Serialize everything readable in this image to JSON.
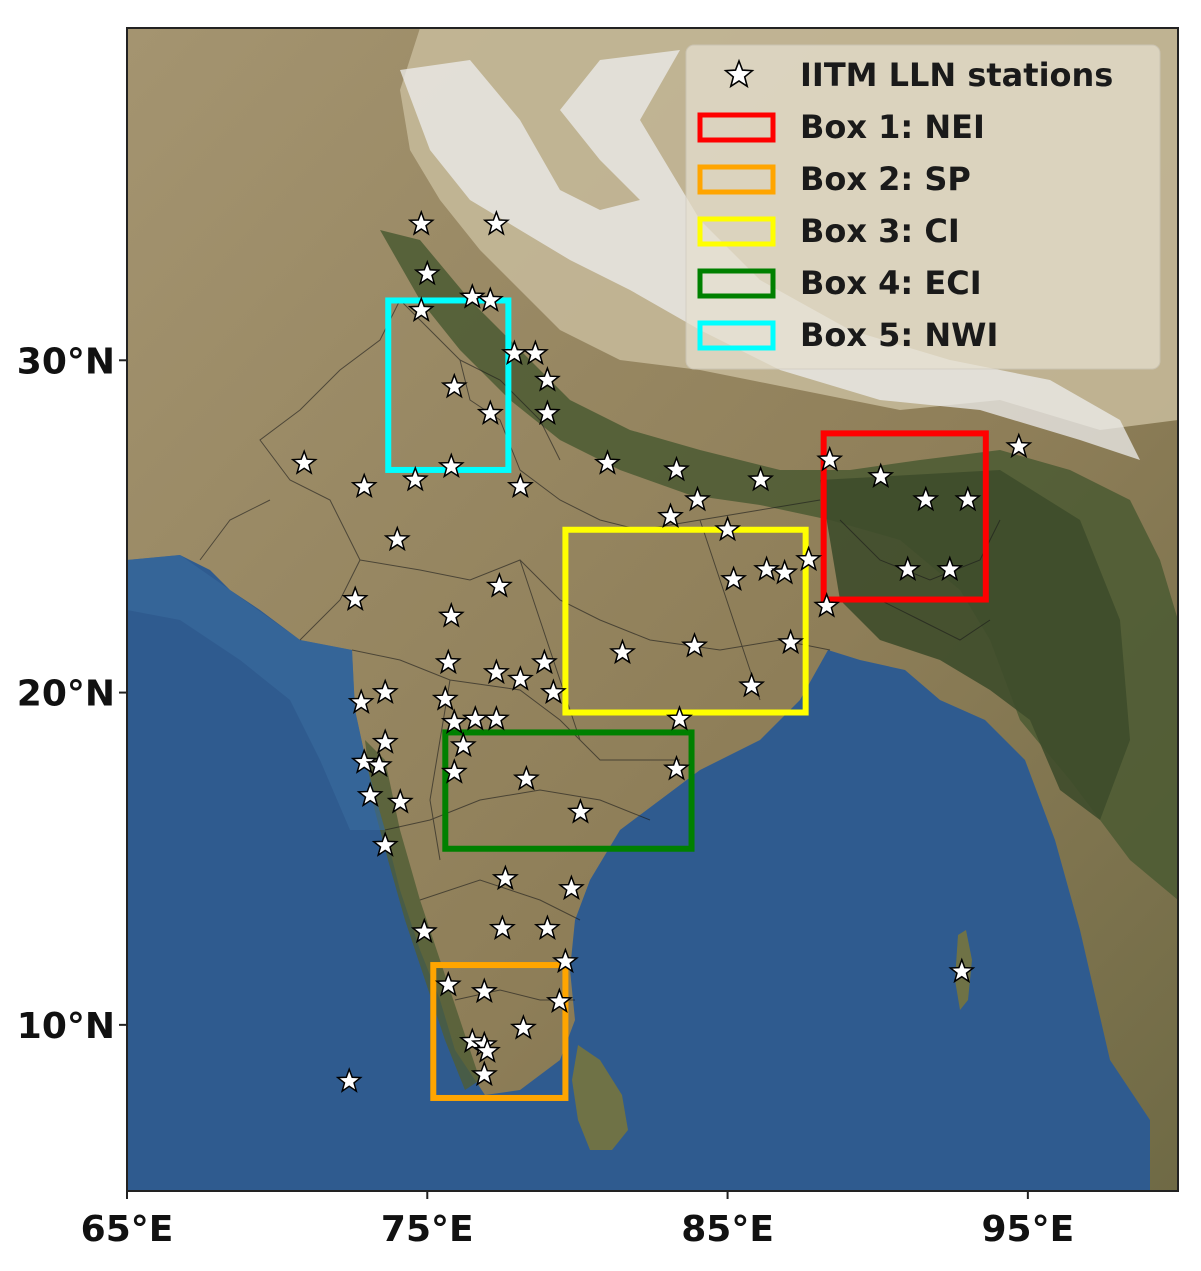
{
  "map": {
    "lon_range": [
      65,
      100
    ],
    "lat_range": [
      5,
      40
    ],
    "x_ticks": [
      {
        "lon": 65,
        "label": "65°E"
      },
      {
        "lon": 75,
        "label": "75°E"
      },
      {
        "lon": 85,
        "label": "85°E"
      },
      {
        "lon": 95,
        "label": "95°E"
      }
    ],
    "y_ticks": [
      {
        "lat": 10,
        "label": "10°N"
      },
      {
        "lat": 20,
        "label": "20°N"
      },
      {
        "lat": 30,
        "label": "30°N"
      }
    ],
    "colors": {
      "ocean": "#2f5b8f",
      "land": "#9a8a63",
      "highland": "#b9ac8c",
      "snow": "#e8e8e8",
      "vegetation": "#4a5a33"
    }
  },
  "legend": {
    "position": "top-right",
    "items": [
      {
        "id": "stations",
        "label": "IITM LLN stations",
        "marker": "star",
        "color": "#ffffff"
      },
      {
        "id": "box1",
        "label": "Box 1: NEI",
        "marker": "rect",
        "color": "#ff0000"
      },
      {
        "id": "box2",
        "label": "Box 2: SP",
        "marker": "rect",
        "color": "#ffa500"
      },
      {
        "id": "box3",
        "label": "Box 3: CI",
        "marker": "rect",
        "color": "#ffff00"
      },
      {
        "id": "box4",
        "label": "Box 4: ECI",
        "marker": "rect",
        "color": "#008000"
      },
      {
        "id": "box5",
        "label": "Box 5: NWI",
        "marker": "rect",
        "color": "#00ffff"
      }
    ]
  },
  "boxes": [
    {
      "id": "box1",
      "name": "NEI",
      "color": "#ff0000",
      "lon": [
        88.2,
        93.6
      ],
      "lat": [
        22.8,
        27.8
      ]
    },
    {
      "id": "box2",
      "name": "SP",
      "color": "#ffa500",
      "lon": [
        75.2,
        79.6
      ],
      "lat": [
        7.8,
        11.8
      ]
    },
    {
      "id": "box3",
      "name": "CI",
      "color": "#ffff00",
      "lon": [
        79.6,
        87.6
      ],
      "lat": [
        19.4,
        24.9
      ]
    },
    {
      "id": "box4",
      "name": "ECI",
      "color": "#008000",
      "lon": [
        75.6,
        83.8
      ],
      "lat": [
        15.3,
        18.8
      ]
    },
    {
      "id": "box5",
      "name": "NWI",
      "color": "#00ffff",
      "lon": [
        73.7,
        77.7
      ],
      "lat": [
        26.7,
        31.8
      ]
    }
  ],
  "stations": [
    [
      74.8,
      34.1
    ],
    [
      77.3,
      34.1
    ],
    [
      75.0,
      32.6
    ],
    [
      76.5,
      31.9
    ],
    [
      77.1,
      31.8
    ],
    [
      74.8,
      31.5
    ],
    [
      77.9,
      30.2
    ],
    [
      78.6,
      30.2
    ],
    [
      79.0,
      29.4
    ],
    [
      75.9,
      29.2
    ],
    [
      77.1,
      28.4
    ],
    [
      79.0,
      28.4
    ],
    [
      70.9,
      26.9
    ],
    [
      72.9,
      26.2
    ],
    [
      74.6,
      26.4
    ],
    [
      75.8,
      26.8
    ],
    [
      78.1,
      26.2
    ],
    [
      81.0,
      26.9
    ],
    [
      83.3,
      26.7
    ],
    [
      84.0,
      25.8
    ],
    [
      86.1,
      26.4
    ],
    [
      88.4,
      27.0
    ],
    [
      90.1,
      26.5
    ],
    [
      91.6,
      25.8
    ],
    [
      93.0,
      25.8
    ],
    [
      94.7,
      27.4
    ],
    [
      83.1,
      25.3
    ],
    [
      85.0,
      24.9
    ],
    [
      85.2,
      23.4
    ],
    [
      86.3,
      23.7
    ],
    [
      86.9,
      23.6
    ],
    [
      87.7,
      24.0
    ],
    [
      91.0,
      23.7
    ],
    [
      92.4,
      23.7
    ],
    [
      88.3,
      22.6
    ],
    [
      74.0,
      24.6
    ],
    [
      72.6,
      22.8
    ],
    [
      75.8,
      22.3
    ],
    [
      77.4,
      23.2
    ],
    [
      81.5,
      21.2
    ],
    [
      83.9,
      21.4
    ],
    [
      87.1,
      21.5
    ],
    [
      85.8,
      20.2
    ],
    [
      75.7,
      20.9
    ],
    [
      77.3,
      20.6
    ],
    [
      78.1,
      20.4
    ],
    [
      78.9,
      20.9
    ],
    [
      79.2,
      20.0
    ],
    [
      72.8,
      19.7
    ],
    [
      73.6,
      20.0
    ],
    [
      75.6,
      19.8
    ],
    [
      75.9,
      19.1
    ],
    [
      76.6,
      19.2
    ],
    [
      77.3,
      19.2
    ],
    [
      83.4,
      19.2
    ],
    [
      73.6,
      18.5
    ],
    [
      76.2,
      18.4
    ],
    [
      72.9,
      17.9
    ],
    [
      73.4,
      17.8
    ],
    [
      75.9,
      17.6
    ],
    [
      78.3,
      17.4
    ],
    [
      83.3,
      17.7
    ],
    [
      73.1,
      16.9
    ],
    [
      74.1,
      16.7
    ],
    [
      80.1,
      16.4
    ],
    [
      73.6,
      15.4
    ],
    [
      77.6,
      14.4
    ],
    [
      79.8,
      14.1
    ],
    [
      77.5,
      12.9
    ],
    [
      79.0,
      12.9
    ],
    [
      74.9,
      12.8
    ],
    [
      79.6,
      11.9
    ],
    [
      75.7,
      11.2
    ],
    [
      76.9,
      11.0
    ],
    [
      79.4,
      10.7
    ],
    [
      78.2,
      9.9
    ],
    [
      76.5,
      9.5
    ],
    [
      76.9,
      9.4
    ],
    [
      77.0,
      9.2
    ],
    [
      76.9,
      8.5
    ],
    [
      72.4,
      8.3
    ],
    [
      92.8,
      11.6
    ]
  ]
}
